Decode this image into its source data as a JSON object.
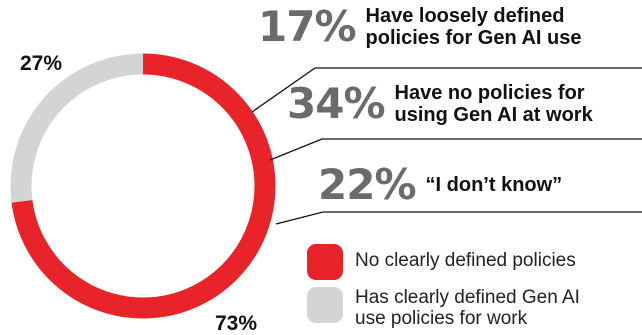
{
  "chart_data": {
    "type": "pie",
    "donut": true,
    "slices": [
      {
        "label": "No clearly defined policies",
        "value": 73,
        "display": "73%",
        "color": "#e8232a"
      },
      {
        "label": "Has clearly defined Gen AI\nuse policies for work",
        "value": 27,
        "display": "27%",
        "color": "#d4d4d4"
      }
    ],
    "breakdown": [
      {
        "value": "17%",
        "text": "Have loosely defined\npolicies for Gen AI use"
      },
      {
        "value": "34%",
        "text": "Have no policies for\nusing Gen AI at work"
      },
      {
        "value": "22%",
        "text": "“I don’t know”"
      }
    ],
    "legend_placement": "bottom-right"
  }
}
